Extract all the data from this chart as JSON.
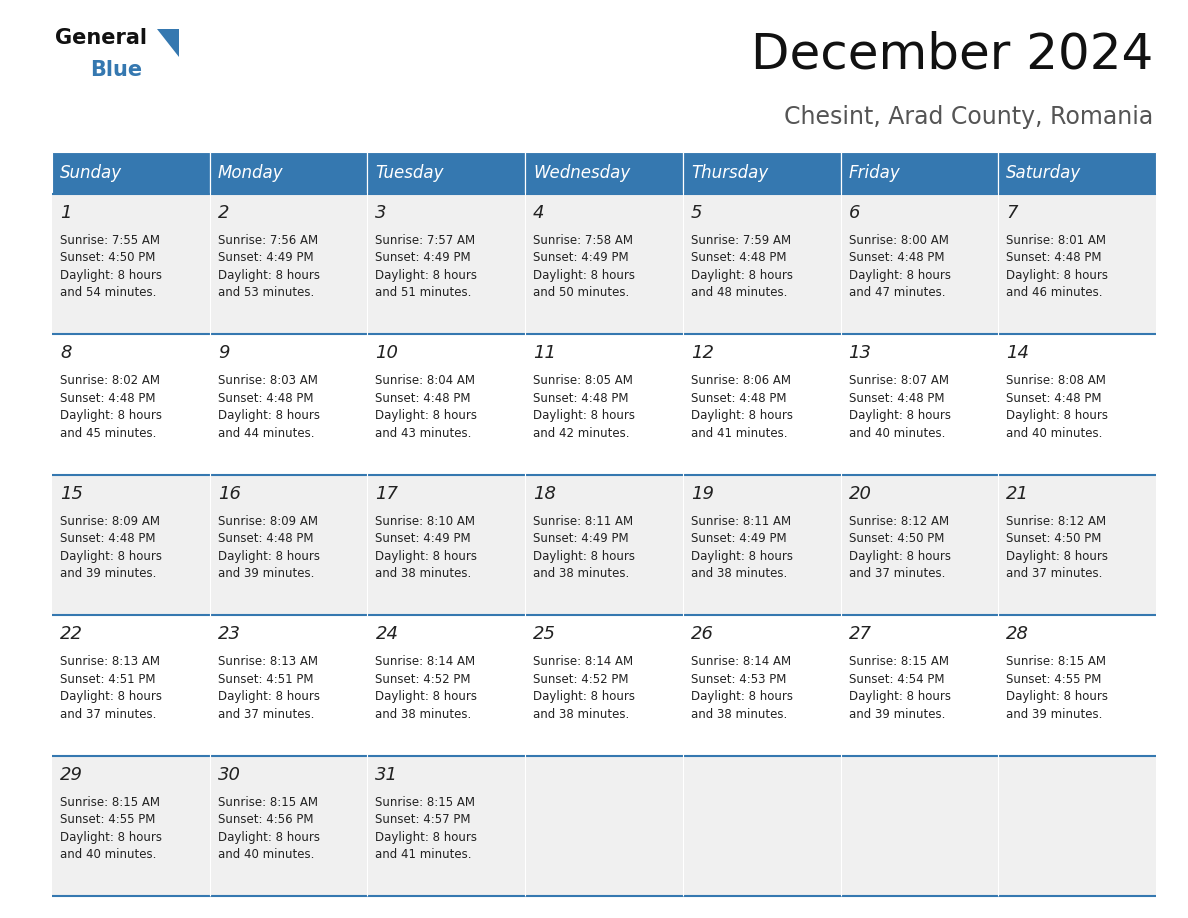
{
  "title": "December 2024",
  "subtitle": "Chesint, Arad County, Romania",
  "header_color": "#3578b0",
  "header_text_color": "#ffffff",
  "weekdays": [
    "Sunday",
    "Monday",
    "Tuesday",
    "Wednesday",
    "Thursday",
    "Friday",
    "Saturday"
  ],
  "bg_color_odd": "#f0f0f0",
  "bg_color_even": "#ffffff",
  "divider_color": "#3578b0",
  "text_color": "#222222",
  "days": [
    {
      "day": 1,
      "col": 0,
      "row": 0,
      "sunrise": "7:55 AM",
      "sunset": "4:50 PM",
      "daylight": "8 hours and 54 minutes."
    },
    {
      "day": 2,
      "col": 1,
      "row": 0,
      "sunrise": "7:56 AM",
      "sunset": "4:49 PM",
      "daylight": "8 hours and 53 minutes."
    },
    {
      "day": 3,
      "col": 2,
      "row": 0,
      "sunrise": "7:57 AM",
      "sunset": "4:49 PM",
      "daylight": "8 hours and 51 minutes."
    },
    {
      "day": 4,
      "col": 3,
      "row": 0,
      "sunrise": "7:58 AM",
      "sunset": "4:49 PM",
      "daylight": "8 hours and 50 minutes."
    },
    {
      "day": 5,
      "col": 4,
      "row": 0,
      "sunrise": "7:59 AM",
      "sunset": "4:48 PM",
      "daylight": "8 hours and 48 minutes."
    },
    {
      "day": 6,
      "col": 5,
      "row": 0,
      "sunrise": "8:00 AM",
      "sunset": "4:48 PM",
      "daylight": "8 hours and 47 minutes."
    },
    {
      "day": 7,
      "col": 6,
      "row": 0,
      "sunrise": "8:01 AM",
      "sunset": "4:48 PM",
      "daylight": "8 hours and 46 minutes."
    },
    {
      "day": 8,
      "col": 0,
      "row": 1,
      "sunrise": "8:02 AM",
      "sunset": "4:48 PM",
      "daylight": "8 hours and 45 minutes."
    },
    {
      "day": 9,
      "col": 1,
      "row": 1,
      "sunrise": "8:03 AM",
      "sunset": "4:48 PM",
      "daylight": "8 hours and 44 minutes."
    },
    {
      "day": 10,
      "col": 2,
      "row": 1,
      "sunrise": "8:04 AM",
      "sunset": "4:48 PM",
      "daylight": "8 hours and 43 minutes."
    },
    {
      "day": 11,
      "col": 3,
      "row": 1,
      "sunrise": "8:05 AM",
      "sunset": "4:48 PM",
      "daylight": "8 hours and 42 minutes."
    },
    {
      "day": 12,
      "col": 4,
      "row": 1,
      "sunrise": "8:06 AM",
      "sunset": "4:48 PM",
      "daylight": "8 hours and 41 minutes."
    },
    {
      "day": 13,
      "col": 5,
      "row": 1,
      "sunrise": "8:07 AM",
      "sunset": "4:48 PM",
      "daylight": "8 hours and 40 minutes."
    },
    {
      "day": 14,
      "col": 6,
      "row": 1,
      "sunrise": "8:08 AM",
      "sunset": "4:48 PM",
      "daylight": "8 hours and 40 minutes."
    },
    {
      "day": 15,
      "col": 0,
      "row": 2,
      "sunrise": "8:09 AM",
      "sunset": "4:48 PM",
      "daylight": "8 hours and 39 minutes."
    },
    {
      "day": 16,
      "col": 1,
      "row": 2,
      "sunrise": "8:09 AM",
      "sunset": "4:48 PM",
      "daylight": "8 hours and 39 minutes."
    },
    {
      "day": 17,
      "col": 2,
      "row": 2,
      "sunrise": "8:10 AM",
      "sunset": "4:49 PM",
      "daylight": "8 hours and 38 minutes."
    },
    {
      "day": 18,
      "col": 3,
      "row": 2,
      "sunrise": "8:11 AM",
      "sunset": "4:49 PM",
      "daylight": "8 hours and 38 minutes."
    },
    {
      "day": 19,
      "col": 4,
      "row": 2,
      "sunrise": "8:11 AM",
      "sunset": "4:49 PM",
      "daylight": "8 hours and 38 minutes."
    },
    {
      "day": 20,
      "col": 5,
      "row": 2,
      "sunrise": "8:12 AM",
      "sunset": "4:50 PM",
      "daylight": "8 hours and 37 minutes."
    },
    {
      "day": 21,
      "col": 6,
      "row": 2,
      "sunrise": "8:12 AM",
      "sunset": "4:50 PM",
      "daylight": "8 hours and 37 minutes."
    },
    {
      "day": 22,
      "col": 0,
      "row": 3,
      "sunrise": "8:13 AM",
      "sunset": "4:51 PM",
      "daylight": "8 hours and 37 minutes."
    },
    {
      "day": 23,
      "col": 1,
      "row": 3,
      "sunrise": "8:13 AM",
      "sunset": "4:51 PM",
      "daylight": "8 hours and 37 minutes."
    },
    {
      "day": 24,
      "col": 2,
      "row": 3,
      "sunrise": "8:14 AM",
      "sunset": "4:52 PM",
      "daylight": "8 hours and 38 minutes."
    },
    {
      "day": 25,
      "col": 3,
      "row": 3,
      "sunrise": "8:14 AM",
      "sunset": "4:52 PM",
      "daylight": "8 hours and 38 minutes."
    },
    {
      "day": 26,
      "col": 4,
      "row": 3,
      "sunrise": "8:14 AM",
      "sunset": "4:53 PM",
      "daylight": "8 hours and 38 minutes."
    },
    {
      "day": 27,
      "col": 5,
      "row": 3,
      "sunrise": "8:15 AM",
      "sunset": "4:54 PM",
      "daylight": "8 hours and 39 minutes."
    },
    {
      "day": 28,
      "col": 6,
      "row": 3,
      "sunrise": "8:15 AM",
      "sunset": "4:55 PM",
      "daylight": "8 hours and 39 minutes."
    },
    {
      "day": 29,
      "col": 0,
      "row": 4,
      "sunrise": "8:15 AM",
      "sunset": "4:55 PM",
      "daylight": "8 hours and 40 minutes."
    },
    {
      "day": 30,
      "col": 1,
      "row": 4,
      "sunrise": "8:15 AM",
      "sunset": "4:56 PM",
      "daylight": "8 hours and 40 minutes."
    },
    {
      "day": 31,
      "col": 2,
      "row": 4,
      "sunrise": "8:15 AM",
      "sunset": "4:57 PM",
      "daylight": "8 hours and 41 minutes."
    }
  ],
  "num_rows": 5,
  "logo_general_color": "#111111",
  "logo_blue_color": "#3578b0",
  "title_color": "#111111",
  "subtitle_color": "#555555",
  "title_fontsize": 36,
  "subtitle_fontsize": 17,
  "header_fontsize": 12,
  "day_num_fontsize": 13,
  "cell_text_fontsize": 8.5
}
